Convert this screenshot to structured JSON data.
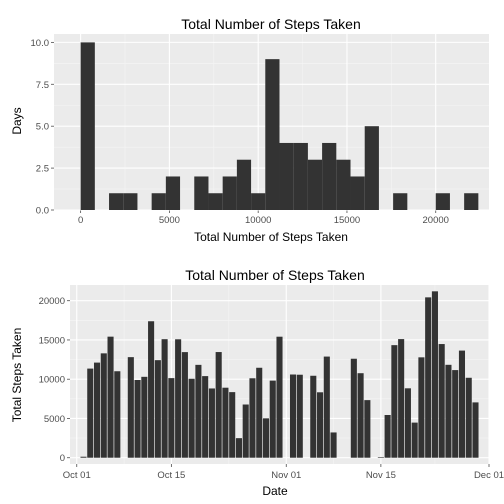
{
  "colors": {
    "panel": "#ebebeb",
    "bar": "#333333",
    "grid": "#ffffff",
    "tick_text": "#4d4d4d"
  },
  "chart_data": [
    {
      "type": "bar",
      "subtype": "histogram",
      "title": "Total Number of Steps Taken",
      "xlabel": "Total Number of Steps Taken",
      "ylabel": "Days",
      "xlim": [
        -1500,
        23000
      ],
      "ylim": [
        0,
        10.5
      ],
      "binwidth": 800,
      "bins_start": [
        0,
        800,
        1600,
        2400,
        3200,
        4000,
        4800,
        5600,
        6400,
        7200,
        8000,
        8800,
        9600,
        10400,
        11200,
        12000,
        12800,
        13600,
        14400,
        15200,
        16000,
        16800,
        17600,
        18400,
        19200,
        20000,
        20800,
        21600
      ],
      "counts": [
        10,
        0,
        1,
        1,
        0,
        1,
        2,
        0,
        2,
        1,
        2,
        3,
        1,
        9,
        4,
        4,
        3,
        4,
        3,
        2,
        5,
        0,
        1,
        0,
        0,
        1,
        0,
        1
      ],
      "bins_start_note": "",
      "xticks": [
        0,
        5000,
        10000,
        15000,
        20000
      ],
      "xtick_labels": [
        "0",
        "5000",
        "10000",
        "15000",
        "20000"
      ],
      "yticks": [
        0,
        2.5,
        5,
        7.5,
        10
      ],
      "ytick_labels": [
        "0.0",
        "2.5",
        "5.0",
        "7.5",
        "10.0"
      ],
      "grid": true
    },
    {
      "type": "bar",
      "title": "Total Number of Steps Taken",
      "xlabel": "Date",
      "ylabel": "Total Steps Taken",
      "xlim": [
        "2012-09-30",
        "2012-12-01"
      ],
      "ylim": [
        -800,
        22000
      ],
      "dates": [
        "2012-10-01",
        "2012-10-02",
        "2012-10-03",
        "2012-10-04",
        "2012-10-05",
        "2012-10-06",
        "2012-10-07",
        "2012-10-08",
        "2012-10-09",
        "2012-10-10",
        "2012-10-11",
        "2012-10-12",
        "2012-10-13",
        "2012-10-14",
        "2012-10-15",
        "2012-10-16",
        "2012-10-17",
        "2012-10-18",
        "2012-10-19",
        "2012-10-20",
        "2012-10-21",
        "2012-10-22",
        "2012-10-23",
        "2012-10-24",
        "2012-10-25",
        "2012-10-26",
        "2012-10-27",
        "2012-10-28",
        "2012-10-29",
        "2012-10-30",
        "2012-10-31",
        "2012-11-01",
        "2012-11-02",
        "2012-11-03",
        "2012-11-04",
        "2012-11-05",
        "2012-11-06",
        "2012-11-07",
        "2012-11-08",
        "2012-11-09",
        "2012-11-10",
        "2012-11-11",
        "2012-11-12",
        "2012-11-13",
        "2012-11-14",
        "2012-11-15",
        "2012-11-16",
        "2012-11-17",
        "2012-11-18",
        "2012-11-19",
        "2012-11-20",
        "2012-11-21",
        "2012-11-22",
        "2012-11-23",
        "2012-11-24",
        "2012-11-25",
        "2012-11-26",
        "2012-11-27",
        "2012-11-28",
        "2012-11-29",
        "2012-11-30"
      ],
      "values": [
        0,
        126,
        11352,
        12116,
        13294,
        15420,
        11015,
        0,
        12811,
        9900,
        10304,
        17382,
        12426,
        15098,
        10139,
        15084,
        13452,
        10056,
        11829,
        10395,
        8821,
        13460,
        8918,
        8355,
        2492,
        6778,
        10119,
        11458,
        5018,
        9819,
        15414,
        0,
        10600,
        10571,
        0,
        10439,
        8334,
        12883,
        3219,
        0,
        0,
        12608,
        10765,
        7336,
        0,
        41,
        5441,
        14339,
        15110,
        8841,
        4472,
        12787,
        20427,
        21194,
        14478,
        11834,
        11162,
        13646,
        10183,
        7047,
        0
      ],
      "xticks": [
        "2012-10-01",
        "2012-10-15",
        "2012-11-01",
        "2012-11-15",
        "2012-12-01"
      ],
      "xtick_labels": [
        "Oct 01",
        "Oct 15",
        "Nov 01",
        "Nov 15",
        "Dec 01"
      ],
      "yticks": [
        0,
        5000,
        10000,
        15000,
        20000
      ],
      "ytick_labels": [
        "0",
        "5000",
        "10000",
        "15000",
        "20000"
      ],
      "grid": true
    }
  ]
}
